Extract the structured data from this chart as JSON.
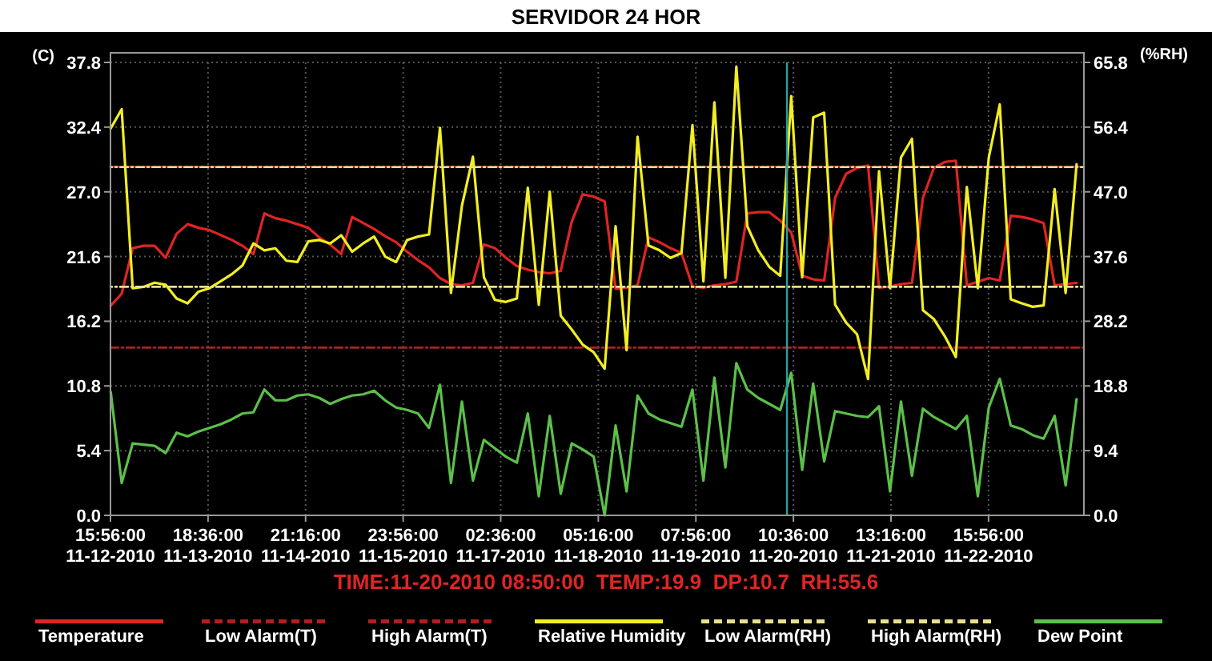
{
  "chart_data": {
    "type": "line",
    "title": "SERVIDOR 24 HOR",
    "ylabel": "(C)",
    "y2label": "(%RH)",
    "annotations": [
      "TIME:11-20-2010 08:50:00  TEMP:19.9  DP:10.7  RH:55.6"
    ],
    "x": [
      "2010-11-12T16:00",
      "2010-11-12T19:00",
      "2010-11-12T22:00",
      "2010-11-13T01:00",
      "2010-11-13T04:00",
      "2010-11-13T07:00",
      "2010-11-13T10:00",
      "2010-11-13T13:00",
      "2010-11-13T16:00",
      "2010-11-13T19:00",
      "2010-11-13T22:00",
      "2010-11-14T01:00",
      "2010-11-14T04:00",
      "2010-11-14T07:00",
      "2010-11-14T10:00",
      "2010-11-14T13:00",
      "2010-11-14T16:00",
      "2010-11-14T19:00",
      "2010-11-14T22:00",
      "2010-11-15T01:00",
      "2010-11-15T04:00",
      "2010-11-15T07:00",
      "2010-11-15T10:00",
      "2010-11-15T13:00",
      "2010-11-15T16:00",
      "2010-11-15T19:00",
      "2010-11-15T22:00",
      "2010-11-16T01:00",
      "2010-11-16T04:00",
      "2010-11-16T07:00",
      "2010-11-16T10:00",
      "2010-11-16T13:00",
      "2010-11-16T16:00",
      "2010-11-16T19:00",
      "2010-11-16T22:00",
      "2010-11-17T01:00",
      "2010-11-17T04:00",
      "2010-11-17T07:00",
      "2010-11-17T10:00",
      "2010-11-17T13:00",
      "2010-11-17T16:00",
      "2010-11-17T19:00",
      "2010-11-17T22:00",
      "2010-11-18T01:00",
      "2010-11-18T04:00",
      "2010-11-18T07:00",
      "2010-11-18T10:00",
      "2010-11-18T13:00",
      "2010-11-18T16:00",
      "2010-11-18T19:00",
      "2010-11-18T22:00",
      "2010-11-19T01:00",
      "2010-11-19T04:00",
      "2010-11-19T07:00",
      "2010-11-19T10:00",
      "2010-11-19T13:00",
      "2010-11-19T16:00",
      "2010-11-19T19:00",
      "2010-11-19T22:00",
      "2010-11-20T01:00",
      "2010-11-20T04:00",
      "2010-11-20T07:00",
      "2010-11-20T10:00",
      "2010-11-20T13:00",
      "2010-11-20T16:00",
      "2010-11-20T19:00",
      "2010-11-20T22:00",
      "2010-11-21T01:00",
      "2010-11-21T04:00",
      "2010-11-21T07:00",
      "2010-11-21T10:00",
      "2010-11-21T13:00",
      "2010-11-21T16:00",
      "2010-11-21T19:00",
      "2010-11-21T22:00",
      "2010-11-22T01:00",
      "2010-11-22T04:00",
      "2010-11-22T07:00",
      "2010-11-22T10:00",
      "2010-11-22T13:00",
      "2010-11-22T16:00",
      "2010-11-22T19:00",
      "2010-11-22T22:00",
      "2010-11-23T01:00",
      "2010-11-23T04:00",
      "2010-11-23T07:00",
      "2010-11-23T10:00",
      "2010-11-23T13:00",
      "2010-11-23T16:00"
    ],
    "series": [
      {
        "name": "Temperature",
        "color": "#e02424",
        "values": [
          17.5,
          18.5,
          22.3,
          22.5,
          22.5,
          21.5,
          23.5,
          24.3,
          24.0,
          23.8,
          23.4,
          23.0,
          22.5,
          21.8,
          25.2,
          24.8,
          24.6,
          24.3,
          24.0,
          23.2,
          22.6,
          21.8,
          24.9,
          24.4,
          23.9,
          23.3,
          22.8,
          22.0,
          21.3,
          20.7,
          19.8,
          19.3,
          19.2,
          19.4,
          22.6,
          22.3,
          21.5,
          20.8,
          20.5,
          20.3,
          20.2,
          20.4,
          24.5,
          26.8,
          26.6,
          26.2,
          18.9,
          19.0,
          19.2,
          23.2,
          22.8,
          22.3,
          21.9,
          19.1,
          19.0,
          19.2,
          19.3,
          19.5,
          25.2,
          25.3,
          25.3,
          24.6,
          23.6,
          20.0,
          19.7,
          19.6,
          26.5,
          28.5,
          29.0,
          29.2,
          19.0,
          19.1,
          19.3,
          19.4,
          26.5,
          29.0,
          29.5,
          29.6,
          19.2,
          19.5,
          19.8,
          19.6,
          25.0,
          24.9,
          24.7,
          24.4,
          19.2,
          19.3,
          19.4
        ]
      },
      {
        "name": "Low Alarm(T)",
        "color": "#b02020",
        "line_style": "dashed",
        "x": [
          "2010-11-12T15:56",
          "2010-11-23T18:00"
        ],
        "values": [
          14.0,
          14.0
        ]
      },
      {
        "name": "High Alarm(T)",
        "color": "#b02020",
        "line_style": "dashed",
        "x": [
          "2010-11-12T15:56",
          "2010-11-23T18:00"
        ],
        "values": [
          29.1,
          29.1
        ]
      },
      {
        "name": "Relative Humidity",
        "color": "#f2ee22",
        "axis": "y2",
        "values": [
          56.2,
          59.0,
          33.0,
          33.2,
          33.8,
          33.5,
          31.5,
          30.8,
          32.5,
          33.0,
          34.0,
          35.0,
          36.3,
          39.5,
          38.5,
          38.8,
          37.0,
          36.8,
          39.8,
          40.0,
          39.5,
          40.7,
          38.3,
          39.5,
          40.5,
          37.6,
          36.8,
          40.0,
          40.5,
          40.8,
          56.3,
          32.3,
          45.0,
          52.1,
          34.6,
          31.3,
          31.0,
          31.5,
          47.6,
          30.6,
          47.0,
          29.0,
          27.0,
          24.8,
          23.7,
          21.3,
          42.0,
          24.0,
          55.0,
          39.2,
          38.5,
          37.4,
          38.1,
          56.7,
          34.0,
          60.0,
          34.5,
          65.2,
          42.0,
          38.5,
          36.1,
          34.8,
          60.9,
          34.6,
          57.8,
          58.5,
          30.6,
          28.0,
          26.3,
          19.8,
          50.0,
          33.0,
          52.0,
          54.7,
          29.8,
          28.5,
          26.0,
          23.0,
          47.7,
          33.0,
          52.0,
          59.7,
          31.4,
          30.8,
          30.3,
          30.5,
          47.4,
          32.3,
          51.0
        ]
      },
      {
        "name": "Low Alarm(RH)",
        "color": "#e8e090",
        "line_style": "dashed",
        "axis": "y2",
        "x": [
          "2010-11-12T15:56",
          "2010-11-23T18:00"
        ],
        "values": [
          33.2,
          33.2
        ]
      },
      {
        "name": "High Alarm(RH)",
        "color": "#e8e090",
        "line_style": "dashed",
        "axis": "y2",
        "x": [
          "2010-11-12T15:56",
          "2010-11-23T18:00"
        ],
        "values": [
          50.6,
          50.6
        ]
      },
      {
        "name": "Dew Point",
        "color": "#5cc04a",
        "values": [
          10.3,
          2.7,
          6.0,
          5.9,
          5.8,
          5.2,
          6.9,
          6.6,
          7.0,
          7.3,
          7.6,
          8.0,
          8.5,
          8.6,
          10.5,
          9.6,
          9.6,
          10.0,
          10.1,
          9.8,
          9.3,
          9.7,
          10.0,
          10.1,
          10.4,
          9.6,
          9.0,
          8.8,
          8.5,
          7.3,
          10.9,
          2.7,
          9.5,
          2.9,
          6.3,
          5.6,
          4.9,
          4.4,
          8.5,
          1.6,
          8.3,
          1.8,
          6.0,
          5.5,
          4.9,
          0.0,
          7.5,
          2.0,
          10.0,
          8.5,
          8.0,
          7.7,
          7.4,
          10.5,
          2.9,
          11.5,
          4.0,
          12.7,
          10.5,
          9.8,
          9.3,
          8.8,
          11.9,
          3.8,
          11.0,
          4.5,
          8.7,
          8.5,
          8.3,
          8.2,
          9.1,
          2.0,
          9.5,
          3.3,
          8.9,
          8.2,
          7.7,
          7.2,
          8.3,
          1.6,
          9.0,
          11.4,
          7.5,
          7.2,
          6.7,
          6.4,
          8.3,
          2.5,
          9.7
        ]
      }
    ],
    "xlim": [
      "2010-11-12T15:56",
      "2010-11-23T18:00"
    ],
    "xticks": [
      {
        "value": "2010-11-12T15:56",
        "label": "15:56:00\n11-12-2010"
      },
      {
        "value": "2010-11-13T18:36",
        "label": "18:36:00\n11-13-2010"
      },
      {
        "value": "2010-11-14T21:16",
        "label": "21:16:00\n11-14-2010"
      },
      {
        "value": "2010-11-15T23:56",
        "label": "23:56:00\n11-15-2010"
      },
      {
        "value": "2010-11-17T02:36",
        "label": "02:36:00\n11-17-2010"
      },
      {
        "value": "2010-11-18T05:16",
        "label": "05:16:00\n11-18-2010"
      },
      {
        "value": "2010-11-19T07:56",
        "label": "07:56:00\n11-19-2010"
      },
      {
        "value": "2010-11-20T10:36",
        "label": "10:36:00\n11-20-2010"
      },
      {
        "value": "2010-11-21T13:16",
        "label": "13:16:00\n11-21-2010"
      },
      {
        "value": "2010-11-22T15:56",
        "label": "15:56:00\n11-22-2010"
      }
    ],
    "ylim": [
      0,
      37.8
    ],
    "yticks": [
      {
        "value": 0,
        "label": "0.0"
      },
      5.4,
      10.8,
      16.2,
      21.6,
      {
        "value": 27,
        "label": "27.0"
      },
      32.4,
      37.8
    ],
    "y2lim": [
      0,
      65.8
    ],
    "y2ticks": [
      {
        "value": 0,
        "label": "0.0"
      },
      9.4,
      18.8,
      28.2,
      37.6,
      {
        "value": 47,
        "label": "47.0"
      },
      56.4,
      65.8
    ],
    "ref_lines": [
      {
        "axis": "x",
        "value": "2010-11-20T08:50",
        "color": "#2aa0a0"
      }
    ],
    "grid": true,
    "legend": "bottom"
  }
}
